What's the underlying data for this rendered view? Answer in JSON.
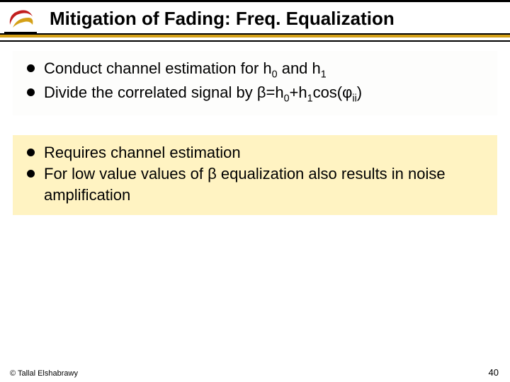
{
  "title": "Mitigation of Fading: Freq. Equalization",
  "box1": {
    "background": "#fdfdfc",
    "items": [
      {
        "html": "Conduct channel estimation for h<sub>0</sub> and h<sub>1</sub>"
      },
      {
        "html": "Divide the correlated signal by β=h<sub>0</sub>+h<sub>1</sub>cos(φ<sub>ii</sub>)"
      }
    ]
  },
  "box2": {
    "background": "#fff3c2",
    "items": [
      {
        "html": "Requires channel estimation"
      },
      {
        "html": "For low value values of β equalization also results in noise amplification"
      }
    ]
  },
  "footer": {
    "copyright": "© Tallal Elshabrawy",
    "page": "40"
  },
  "colors": {
    "underline_black": "#000000",
    "underline_gold": "#d4a017",
    "logo_red": "#c21f1f",
    "logo_gold": "#d4a017"
  }
}
